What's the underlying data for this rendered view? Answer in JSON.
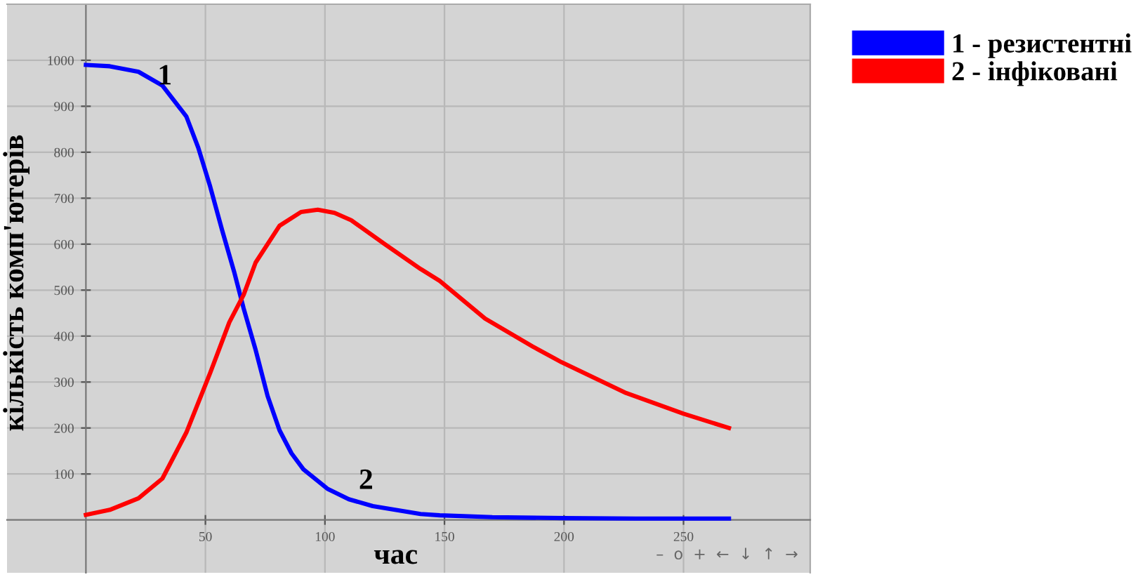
{
  "chart_data": {
    "type": "line",
    "xlabel": "час",
    "ylabel": "кількість комп'ютерів",
    "xlim": [
      -33,
      303
    ],
    "ylim": [
      -115,
      1122
    ],
    "xticks": [
      50,
      100,
      150,
      200,
      250
    ],
    "yticks": [
      100,
      200,
      300,
      400,
      500,
      600,
      700,
      800,
      900,
      1000
    ],
    "grid": true,
    "legend": "top right",
    "marker": "none",
    "line_style": "solid",
    "series": [
      {
        "name": "1 - резистентні",
        "color": "#0000ff",
        "x": [
          0,
          10,
          22,
          32,
          42,
          47,
          52,
          57,
          62,
          66,
          71,
          76,
          81,
          86,
          91,
          101,
          110,
          120,
          140,
          148,
          170,
          200,
          230,
          269
        ],
        "values": [
          990,
          987,
          975,
          945,
          878,
          810,
          725,
          630,
          540,
          460,
          370,
          270,
          195,
          145,
          110,
          68,
          45,
          30,
          13,
          10,
          6,
          4,
          3,
          3
        ]
      },
      {
        "name": "2 - інфіковані",
        "color": "#ff0000",
        "x": [
          0,
          10,
          22,
          32,
          42,
          52,
          60,
          66,
          71,
          81,
          90,
          97,
          104,
          111,
          125,
          140,
          148,
          167,
          187,
          199,
          226,
          250,
          269
        ],
        "values": [
          11,
          22,
          47,
          90,
          190,
          320,
          430,
          490,
          560,
          640,
          670,
          675,
          668,
          652,
          600,
          546,
          520,
          438,
          377,
          343,
          276,
          231,
          200
        ]
      }
    ],
    "annotations": [
      {
        "text": "1",
        "x": 33,
        "y": 963
      },
      "2",
      "–  o  +  ←  ↓  ↑  →"
    ]
  }
}
